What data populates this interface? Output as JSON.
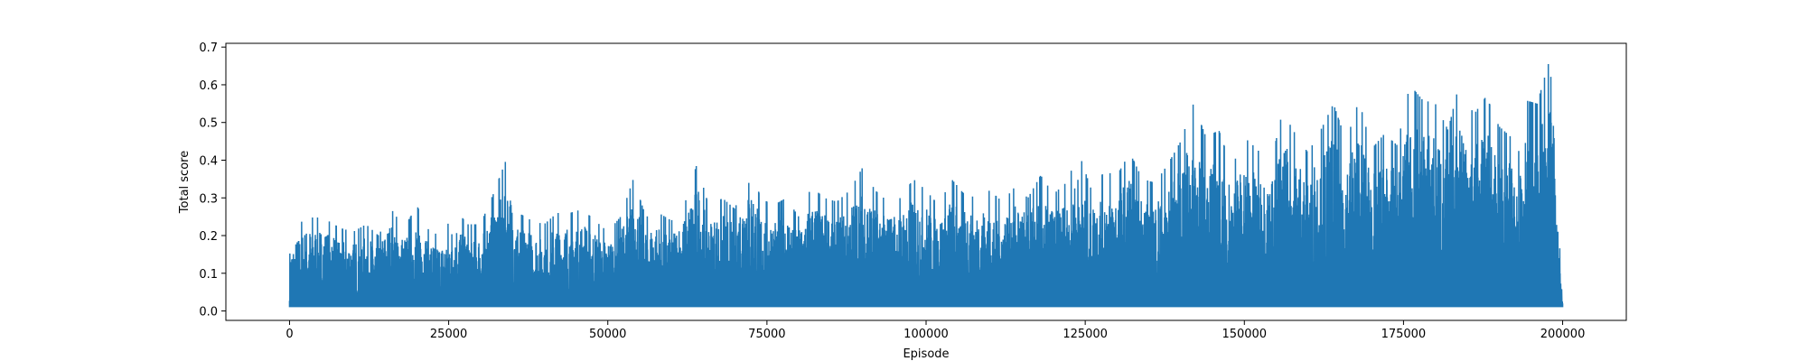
{
  "chart_data": {
    "type": "line",
    "title": "",
    "xlabel": "Episode",
    "ylabel": "Total score",
    "xlim": [
      -10000,
      210000
    ],
    "ylim": [
      -0.025,
      0.71
    ],
    "x_ticks": [
      0,
      25000,
      50000,
      75000,
      100000,
      125000,
      150000,
      175000,
      200000
    ],
    "x_tick_labels": [
      "0",
      "25000",
      "50000",
      "75000",
      "100000",
      "125000",
      "150000",
      "175000",
      "200000"
    ],
    "y_ticks": [
      0.0,
      0.1,
      0.2,
      0.3,
      0.4,
      0.5,
      0.6,
      0.7
    ],
    "y_tick_labels": [
      "0.0",
      "0.1",
      "0.2",
      "0.3",
      "0.4",
      "0.5",
      "0.6",
      "0.7"
    ],
    "grid": false,
    "line_color": "#1f77b4",
    "series": [
      {
        "x": [
          0,
          2000,
          4000,
          6000,
          8000,
          10000,
          12000,
          14000,
          16000,
          18000,
          20000,
          22000,
          24000,
          26000,
          28000,
          30000,
          32000,
          34000,
          36000,
          38000,
          40000,
          42000,
          44000,
          46000,
          48000,
          50000,
          52000,
          54000,
          56000,
          58000,
          60000,
          62000,
          64000,
          66000,
          68000,
          70000,
          72000,
          74000,
          76000,
          78000,
          80000,
          82000,
          84000,
          86000,
          88000,
          90000,
          92000,
          94000,
          96000,
          98000,
          100000,
          102000,
          104000,
          106000,
          108000,
          110000,
          112000,
          114000,
          116000,
          118000,
          120000,
          122000,
          124000,
          126000,
          128000,
          130000,
          132000,
          134000,
          136000,
          138000,
          140000,
          142000,
          144000,
          146000,
          148000,
          150000,
          152000,
          154000,
          156000,
          158000,
          160000,
          162000,
          164000,
          166000,
          168000,
          170000,
          172000,
          174000,
          176000,
          178000,
          180000,
          182000,
          184000,
          186000,
          188000,
          190000,
          192000,
          194000,
          196000,
          198000,
          200000
        ],
        "values": [
          0.18,
          0.24,
          0.25,
          0.24,
          0.22,
          0.21,
          0.23,
          0.2,
          0.27,
          0.22,
          0.28,
          0.21,
          0.2,
          0.27,
          0.23,
          0.23,
          0.31,
          0.4,
          0.26,
          0.24,
          0.23,
          0.26,
          0.26,
          0.27,
          0.24,
          0.21,
          0.25,
          0.35,
          0.25,
          0.26,
          0.24,
          0.28,
          0.39,
          0.27,
          0.3,
          0.27,
          0.41,
          0.3,
          0.28,
          0.3,
          0.25,
          0.33,
          0.3,
          0.29,
          0.32,
          0.38,
          0.32,
          0.29,
          0.3,
          0.35,
          0.32,
          0.28,
          0.35,
          0.31,
          0.3,
          0.32,
          0.29,
          0.33,
          0.3,
          0.36,
          0.31,
          0.34,
          0.42,
          0.32,
          0.37,
          0.36,
          0.42,
          0.35,
          0.34,
          0.39,
          0.45,
          0.55,
          0.46,
          0.48,
          0.38,
          0.46,
          0.43,
          0.38,
          0.53,
          0.47,
          0.42,
          0.48,
          0.55,
          0.45,
          0.56,
          0.43,
          0.47,
          0.44,
          0.6,
          0.56,
          0.55,
          0.48,
          0.62,
          0.52,
          0.57,
          0.49,
          0.46,
          0.56,
          0.55,
          0.67,
          0.02
        ]
      }
    ]
  }
}
